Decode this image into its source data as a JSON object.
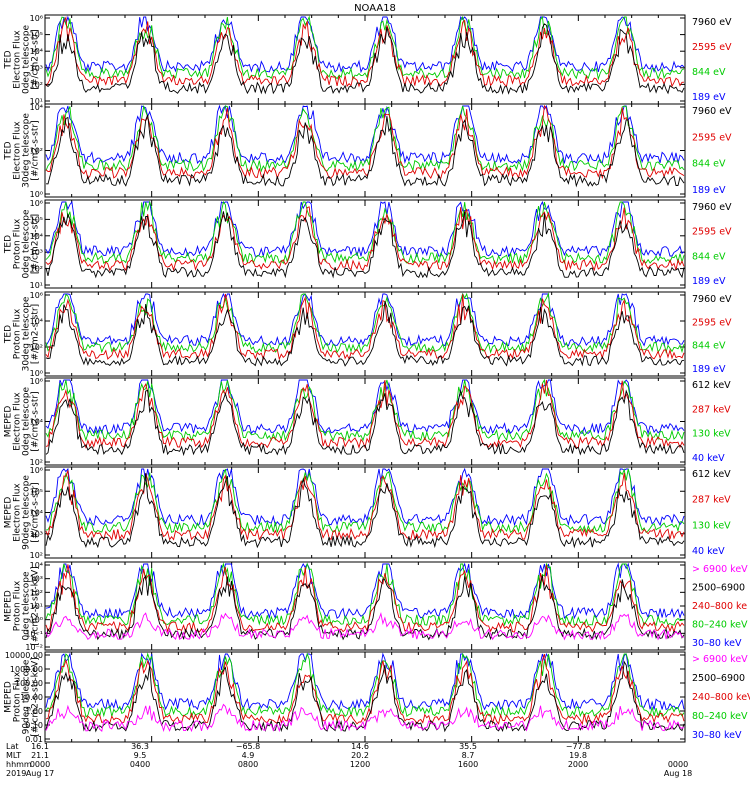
{
  "title": "NOAA18",
  "colors": {
    "black": "#000000",
    "red": "#e00000",
    "green": "#00cc00",
    "blue": "#0000ff",
    "magenta": "#ff00ff"
  },
  "chart_data": [
    {
      "type": "line",
      "panel": "ted-electron-0deg",
      "ylabel": [
        "TED",
        "Electron Flux",
        "0deg telescope",
        "[#/cm2-s-str]"
      ],
      "yscale": "log",
      "ylim": [
        1,
        1000000
      ],
      "yticks": [
        "10¹",
        "10²",
        "10³",
        "10⁴",
        "10⁵",
        "10⁶"
      ],
      "series": [
        {
          "name": "7960 eV",
          "color": "#000000"
        },
        {
          "name": "2595 eV",
          "color": "#e00000"
        },
        {
          "name": "844 eV",
          "color": "#00cc00"
        },
        {
          "name": "189 eV",
          "color": "#0000ff"
        }
      ]
    },
    {
      "type": "line",
      "panel": "ted-electron-30deg",
      "ylabel": [
        "TED",
        "Electron Flux",
        "30deg telescope",
        "[#/cm2-s-str]"
      ],
      "yscale": "log",
      "ylim": [
        1,
        100000
      ],
      "yticks": [
        "10⁰",
        "10²",
        "10⁴"
      ],
      "series": [
        {
          "name": "7960 eV",
          "color": "#000000"
        },
        {
          "name": "2595 eV",
          "color": "#e00000"
        },
        {
          "name": "844 eV",
          "color": "#00cc00"
        },
        {
          "name": "189 eV",
          "color": "#0000ff"
        }
      ]
    },
    {
      "type": "line",
      "panel": "ted-proton-0deg",
      "ylabel": [
        "TED",
        "Proton Flux",
        "0deg telescope",
        "[#/cm2-s-str]"
      ],
      "yscale": "log",
      "ylim": [
        1,
        1000000
      ],
      "yticks": [
        "10¹",
        "10²",
        "10³",
        "10⁴",
        "10⁵",
        "10⁶"
      ],
      "series": [
        {
          "name": "7960 eV",
          "color": "#000000"
        },
        {
          "name": "2595 eV",
          "color": "#e00000"
        },
        {
          "name": "844 eV",
          "color": "#00cc00"
        },
        {
          "name": "189 eV",
          "color": "#0000ff"
        }
      ]
    },
    {
      "type": "line",
      "panel": "ted-proton-30deg",
      "ylabel": [
        "TED",
        "Proton Flux",
        "30deg telescope",
        "[#/cm2-s-str]"
      ],
      "yscale": "log",
      "ylim": [
        1,
        1000000
      ],
      "yticks": [
        "10⁰",
        "10²",
        "10⁴",
        "10⁶"
      ],
      "series": [
        {
          "name": "7960 eV",
          "color": "#000000"
        },
        {
          "name": "2595 eV",
          "color": "#e00000"
        },
        {
          "name": "844 eV",
          "color": "#00cc00"
        },
        {
          "name": "189 eV",
          "color": "#0000ff"
        }
      ]
    },
    {
      "type": "line",
      "panel": "meped-electron-0deg",
      "ylabel": [
        "MEPED",
        "Electron Flux",
        "0deg telescope",
        "[#/cm2-s-str]"
      ],
      "yscale": "log",
      "ylim": [
        10,
        1000000
      ],
      "yticks": [
        "10²",
        "10⁴",
        "10⁶"
      ],
      "series": [
        {
          "name": "612 keV",
          "color": "#000000"
        },
        {
          "name": "287 keV",
          "color": "#e00000"
        },
        {
          "name": "130 keV",
          "color": "#00cc00"
        },
        {
          "name": "40 keV",
          "color": "#0000ff"
        }
      ]
    },
    {
      "type": "line",
      "panel": "meped-electron-90deg",
      "ylabel": [
        "MEPED",
        "Electron Flux",
        "90deg telescope",
        "[#/cm2-s-str]"
      ],
      "yscale": "log",
      "ylim": [
        10,
        1000000
      ],
      "yticks": [
        "10²",
        "10³",
        "10⁴",
        "10⁵",
        "10⁶"
      ],
      "series": [
        {
          "name": "612 keV",
          "color": "#000000"
        },
        {
          "name": "287 keV",
          "color": "#e00000"
        },
        {
          "name": "130 keV",
          "color": "#00cc00"
        },
        {
          "name": "40 keV",
          "color": "#0000ff"
        }
      ]
    },
    {
      "type": "line",
      "panel": "meped-proton-0deg",
      "ylabel": [
        "MEPED",
        "Proton Flux",
        "0deg telescope",
        "[#/cm2-s-str-keV]"
      ],
      "yscale": "log",
      "ylim": [
        0.01,
        10000
      ],
      "yticks": [
        "10⁻²",
        "10⁻¹",
        "10⁰",
        "10¹",
        "10²",
        "10³",
        "10⁴"
      ],
      "series": [
        {
          "name": "> 6900 keV",
          "color": "#ff00ff"
        },
        {
          "name": "2500–6900",
          "color": "#000000"
        },
        {
          "name": "240–800 ke",
          "color": "#e00000"
        },
        {
          "name": "80–240 keV",
          "color": "#00cc00"
        },
        {
          "name": "30–80 keV",
          "color": "#0000ff"
        }
      ]
    },
    {
      "type": "line",
      "panel": "meped-proton-90deg",
      "ylabel": [
        "MEPED",
        "Proton Flux",
        "90deg telescope",
        "[#/cm2-s-str-keV]"
      ],
      "yscale": "log",
      "ylim": [
        0.01,
        10000
      ],
      "yticks": [
        "0.01",
        "0.10",
        "1.00",
        "10.00",
        "100.00",
        "1000.00",
        "10000.00"
      ],
      "series": [
        {
          "name": "> 6900 keV",
          "color": "#ff00ff"
        },
        {
          "name": "2500–6900",
          "color": "#000000"
        },
        {
          "name": "240–800 keV",
          "color": "#e00000"
        },
        {
          "name": "80–240 keV",
          "color": "#00cc00"
        },
        {
          "name": "30–80 keV",
          "color": "#0000ff"
        }
      ]
    }
  ],
  "xaxis": {
    "row_labels": [
      "Lat",
      "MLT",
      "hhmm",
      "2019"
    ],
    "ticks": [
      {
        "lat": "16.1",
        "mlt": "21.1",
        "hhmm": "0000",
        "date": "Aug 17"
      },
      {
        "lat": "36.3",
        "mlt": "9.5",
        "hhmm": "0400",
        "date": ""
      },
      {
        "lat": "−65.8",
        "mlt": "4.9",
        "hhmm": "0800",
        "date": ""
      },
      {
        "lat": "14.6",
        "mlt": "20.2",
        "hhmm": "1200",
        "date": ""
      },
      {
        "lat": "35.5",
        "mlt": "8.7",
        "hhmm": "1600",
        "date": ""
      },
      {
        "lat": "−77.8",
        "mlt": "19.8",
        "hhmm": "2000",
        "date": ""
      },
      {
        "lat": "",
        "mlt": "",
        "hhmm": "0000",
        "date": "Aug 18"
      }
    ]
  }
}
